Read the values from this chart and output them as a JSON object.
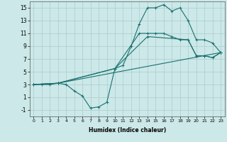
{
  "xlabel": "Humidex (Indice chaleur)",
  "xlim": [
    -0.5,
    23.5
  ],
  "ylim": [
    -2,
    16
  ],
  "xticks": [
    0,
    1,
    2,
    3,
    4,
    5,
    6,
    7,
    8,
    9,
    10,
    11,
    12,
    13,
    14,
    15,
    16,
    17,
    18,
    19,
    20,
    21,
    22,
    23
  ],
  "yticks": [
    -1,
    1,
    3,
    5,
    7,
    9,
    11,
    13,
    15
  ],
  "bg_color": "#cce8e8",
  "grid_color": "#aacccc",
  "line_color": "#1a7070",
  "lines": [
    {
      "x": [
        0,
        1,
        2,
        3,
        4,
        5,
        6,
        7,
        8,
        9,
        10,
        11,
        12,
        13,
        14,
        15,
        16,
        17,
        18,
        19,
        20,
        21,
        22,
        23
      ],
      "y": [
        3,
        3,
        3,
        3.2,
        3,
        2,
        1.2,
        -0.7,
        -0.5,
        0.2,
        5.5,
        6,
        9,
        12.5,
        15,
        15,
        15.5,
        14.5,
        15,
        13,
        10,
        10,
        9.5,
        8
      ]
    },
    {
      "x": [
        0,
        3,
        10,
        13,
        14,
        15,
        16,
        17,
        18,
        19,
        20,
        21,
        22,
        23
      ],
      "y": [
        3,
        3.2,
        5.5,
        11,
        11,
        11,
        11,
        10.5,
        10,
        10,
        7.5,
        7.5,
        7.2,
        8
      ]
    },
    {
      "x": [
        0,
        3,
        10,
        14,
        19,
        20,
        21,
        22,
        23
      ],
      "y": [
        3,
        3.2,
        5.5,
        10.5,
        10,
        7.5,
        7.5,
        7.2,
        8
      ]
    },
    {
      "x": [
        0,
        3,
        23
      ],
      "y": [
        3,
        3.2,
        8
      ]
    }
  ]
}
